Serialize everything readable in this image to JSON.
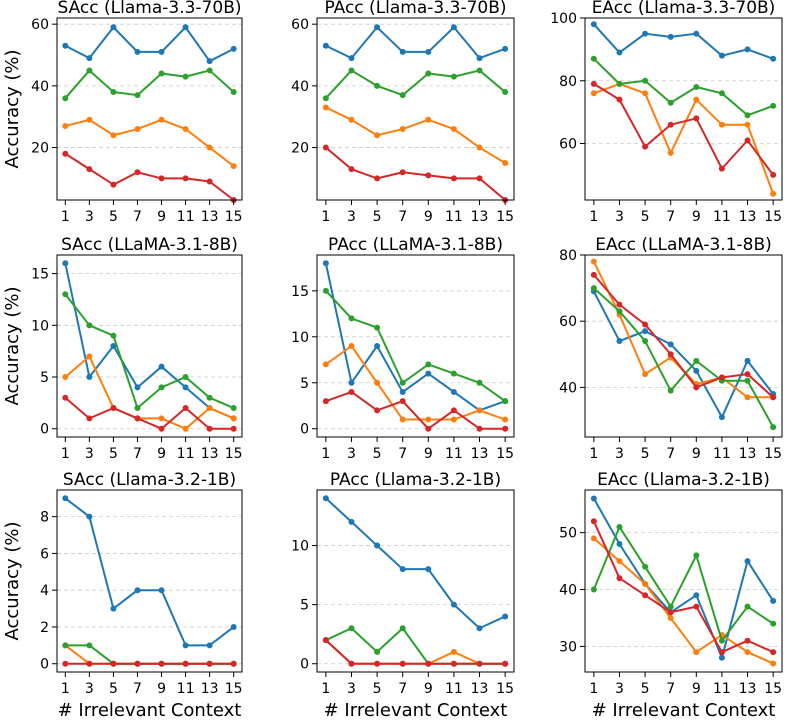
{
  "chart_data": [
    {
      "type": "line",
      "title": "SAcc (Llama-3.3-70B)",
      "ylabel": "Accuracy (%)",
      "xlabel": "",
      "x": [
        1,
        3,
        5,
        7,
        9,
        11,
        13,
        15
      ],
      "ylim": [
        3,
        62
      ],
      "yticks": [
        20,
        40,
        60
      ],
      "series": [
        {
          "name": "blue",
          "color": "#1f77b4",
          "values": [
            53,
            49,
            59,
            51,
            51,
            59,
            48,
            52
          ]
        },
        {
          "name": "orange",
          "color": "#ff7f0e",
          "values": [
            27,
            29,
            24,
            26,
            29,
            26,
            20,
            14
          ]
        },
        {
          "name": "green",
          "color": "#2ca02c",
          "values": [
            36,
            45,
            38,
            37,
            44,
            43,
            45,
            38
          ]
        },
        {
          "name": "red",
          "color": "#d62728",
          "values": [
            18,
            13,
            8,
            12,
            10,
            10,
            9,
            3
          ]
        }
      ]
    },
    {
      "type": "line",
      "title": "PAcc (Llama-3.3-70B)",
      "ylabel": "",
      "xlabel": "",
      "x": [
        1,
        3,
        5,
        7,
        9,
        11,
        13,
        15
      ],
      "ylim": [
        3,
        62
      ],
      "yticks": [
        20,
        40,
        60
      ],
      "series": [
        {
          "name": "blue",
          "color": "#1f77b4",
          "values": [
            53,
            49,
            59,
            51,
            51,
            59,
            49,
            52
          ]
        },
        {
          "name": "orange",
          "color": "#ff7f0e",
          "values": [
            33,
            29,
            24,
            26,
            29,
            26,
            20,
            15
          ]
        },
        {
          "name": "green",
          "color": "#2ca02c",
          "values": [
            36,
            45,
            40,
            37,
            44,
            43,
            45,
            38
          ]
        },
        {
          "name": "red",
          "color": "#d62728",
          "values": [
            20,
            13,
            10,
            12,
            11,
            10,
            10,
            3
          ]
        }
      ]
    },
    {
      "type": "line",
      "title": "EAcc (Llama-3.3-70B)",
      "ylabel": "",
      "xlabel": "",
      "x": [
        1,
        3,
        5,
        7,
        9,
        11,
        13,
        15
      ],
      "ylim": [
        42,
        100
      ],
      "yticks": [
        60,
        80,
        100
      ],
      "series": [
        {
          "name": "blue",
          "color": "#1f77b4",
          "values": [
            98,
            89,
            95,
            94,
            95,
            88,
            90,
            87
          ]
        },
        {
          "name": "orange",
          "color": "#ff7f0e",
          "values": [
            76,
            79,
            76,
            57,
            74,
            66,
            66,
            44
          ]
        },
        {
          "name": "green",
          "color": "#2ca02c",
          "values": [
            87,
            79,
            80,
            73,
            78,
            76,
            69,
            72
          ]
        },
        {
          "name": "red",
          "color": "#d62728",
          "values": [
            79,
            74,
            59,
            66,
            68,
            52,
            61,
            50
          ]
        }
      ]
    },
    {
      "type": "line",
      "title": "SAcc (LLaMA-3.1-8B)",
      "ylabel": "Accuracy (%)",
      "xlabel": "",
      "x": [
        1,
        3,
        5,
        7,
        9,
        11,
        13,
        15
      ],
      "ylim": [
        -0.8,
        16.8
      ],
      "yticks": [
        0,
        5,
        10,
        15
      ],
      "series": [
        {
          "name": "blue",
          "color": "#1f77b4",
          "values": [
            16,
            5,
            8,
            4,
            6,
            4,
            2,
            1
          ]
        },
        {
          "name": "orange",
          "color": "#ff7f0e",
          "values": [
            5,
            7,
            2,
            1,
            1,
            0,
            2,
            1
          ]
        },
        {
          "name": "green",
          "color": "#2ca02c",
          "values": [
            13,
            10,
            9,
            2,
            4,
            5,
            3,
            2
          ]
        },
        {
          "name": "red",
          "color": "#d62728",
          "values": [
            3,
            1,
            2,
            1,
            0,
            2,
            0,
            0
          ]
        }
      ]
    },
    {
      "type": "line",
      "title": "PAcc (LLaMA-3.1-8B)",
      "ylabel": "",
      "xlabel": "",
      "x": [
        1,
        3,
        5,
        7,
        9,
        11,
        13,
        15
      ],
      "ylim": [
        -0.9,
        18.9
      ],
      "yticks": [
        0,
        5,
        10,
        15
      ],
      "series": [
        {
          "name": "blue",
          "color": "#1f77b4",
          "values": [
            18,
            5,
            9,
            4,
            6,
            4,
            2,
            3
          ]
        },
        {
          "name": "orange",
          "color": "#ff7f0e",
          "values": [
            7,
            9,
            5,
            1,
            1,
            1,
            2,
            1
          ]
        },
        {
          "name": "green",
          "color": "#2ca02c",
          "values": [
            15,
            12,
            11,
            5,
            7,
            6,
            5,
            3
          ]
        },
        {
          "name": "red",
          "color": "#d62728",
          "values": [
            3,
            4,
            2,
            3,
            0,
            2,
            0,
            0
          ]
        }
      ]
    },
    {
      "type": "line",
      "title": "EAcc (LLaMA-3.1-8B)",
      "ylabel": "",
      "xlabel": "",
      "x": [
        1,
        3,
        5,
        7,
        9,
        11,
        13,
        15
      ],
      "ylim": [
        25,
        80
      ],
      "yticks": [
        40,
        60,
        80
      ],
      "series": [
        {
          "name": "blue",
          "color": "#1f77b4",
          "values": [
            69,
            54,
            57,
            53,
            45,
            31,
            48,
            38
          ]
        },
        {
          "name": "orange",
          "color": "#ff7f0e",
          "values": [
            78,
            62,
            44,
            49,
            41,
            43,
            37,
            37
          ]
        },
        {
          "name": "green",
          "color": "#2ca02c",
          "values": [
            70,
            63,
            54,
            39,
            48,
            42,
            42,
            28
          ]
        },
        {
          "name": "red",
          "color": "#d62728",
          "values": [
            74,
            65,
            59,
            50,
            40,
            43,
            44,
            37
          ]
        }
      ]
    },
    {
      "type": "line",
      "title": "SAcc (Llama-3.2-1B)",
      "ylabel": "Accuracy (%)",
      "xlabel": "# Irrelevant Context",
      "x": [
        1,
        3,
        5,
        7,
        9,
        11,
        13,
        15
      ],
      "ylim": [
        -0.45,
        9.45
      ],
      "yticks": [
        0,
        2,
        4,
        6,
        8
      ],
      "series": [
        {
          "name": "blue",
          "color": "#1f77b4",
          "values": [
            9,
            8,
            3,
            4,
            4,
            1,
            1,
            2
          ]
        },
        {
          "name": "orange",
          "color": "#ff7f0e",
          "values": [
            1,
            0,
            0,
            0,
            0,
            0,
            0,
            0
          ]
        },
        {
          "name": "green",
          "color": "#2ca02c",
          "values": [
            1,
            1,
            0,
            0,
            0,
            0,
            0,
            0
          ]
        },
        {
          "name": "red",
          "color": "#d62728",
          "values": [
            0,
            0,
            0,
            0,
            0,
            0,
            0,
            0
          ]
        }
      ]
    },
    {
      "type": "line",
      "title": "PAcc (Llama-3.2-1B)",
      "ylabel": "",
      "xlabel": "# Irrelevant Context",
      "x": [
        1,
        3,
        5,
        7,
        9,
        11,
        13,
        15
      ],
      "ylim": [
        -0.7,
        14.7
      ],
      "yticks": [
        0,
        5,
        10
      ],
      "series": [
        {
          "name": "blue",
          "color": "#1f77b4",
          "values": [
            14,
            12,
            10,
            8,
            8,
            5,
            3,
            4
          ]
        },
        {
          "name": "orange",
          "color": "#ff7f0e",
          "values": [
            2,
            0,
            0,
            0,
            0,
            1,
            0,
            0
          ]
        },
        {
          "name": "green",
          "color": "#2ca02c",
          "values": [
            2,
            3,
            1,
            3,
            0,
            0,
            0,
            0
          ]
        },
        {
          "name": "red",
          "color": "#d62728",
          "values": [
            2,
            0,
            0,
            0,
            0,
            0,
            0,
            0
          ]
        }
      ]
    },
    {
      "type": "line",
      "title": "EAcc (Llama-3.2-1B)",
      "ylabel": "",
      "xlabel": "# Irrelevant Context",
      "x": [
        1,
        3,
        5,
        7,
        9,
        11,
        13,
        15
      ],
      "ylim": [
        25.5,
        57.5
      ],
      "yticks": [
        30,
        40,
        50
      ],
      "series": [
        {
          "name": "blue",
          "color": "#1f77b4",
          "values": [
            56,
            48,
            41,
            36,
            39,
            28,
            45,
            38
          ]
        },
        {
          "name": "orange",
          "color": "#ff7f0e",
          "values": [
            49,
            45,
            41,
            35,
            29,
            32,
            29,
            27
          ]
        },
        {
          "name": "green",
          "color": "#2ca02c",
          "values": [
            40,
            51,
            44,
            37,
            46,
            31,
            37,
            34
          ]
        },
        {
          "name": "red",
          "color": "#d62728",
          "values": [
            52,
            42,
            39,
            36,
            37,
            29,
            31,
            29
          ]
        }
      ]
    }
  ]
}
